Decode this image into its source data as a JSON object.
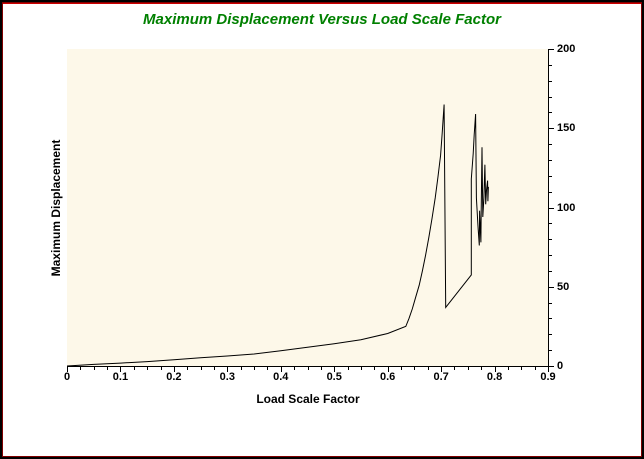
{
  "window": {
    "background": "#ffffff",
    "border_outer": "#000000",
    "border_inner": "#800000",
    "border_inner_top": "#cc0000"
  },
  "chart_data": {
    "type": "line",
    "title": "Maximum Displacement Versus Load Scale Factor",
    "xlabel": "Load Scale Factor",
    "ylabel": "Maximum Displacement",
    "xlim": [
      0,
      0.9
    ],
    "ylim": [
      0,
      200
    ],
    "x_ticks": [
      "0",
      "0.1",
      "0.2",
      "0.3",
      "0.4",
      "0.5",
      "0.6",
      "0.7",
      "0.8",
      "0.9"
    ],
    "y_ticks": [
      "0",
      "50",
      "100",
      "150",
      "200"
    ],
    "x_major_step": 0.1,
    "x_minor_step": 0.025,
    "y_major_step": 50,
    "y_minor_step": 10,
    "y_axis_position": "right",
    "grid": false,
    "legend": "none",
    "colors": {
      "title": "#008000",
      "plot_background": "#fdf8e9",
      "line": "#000000",
      "axis": "#000000",
      "labels": "#000000"
    },
    "series": [
      {
        "name": "max-displacement-curve",
        "points": [
          [
            0.0,
            0
          ],
          [
            0.05,
            1
          ],
          [
            0.1,
            1.8
          ],
          [
            0.15,
            2.8
          ],
          [
            0.2,
            4.0
          ],
          [
            0.25,
            5.2
          ],
          [
            0.3,
            6.3
          ],
          [
            0.35,
            7.6
          ],
          [
            0.4,
            9.6
          ],
          [
            0.45,
            11.8
          ],
          [
            0.5,
            14.0
          ],
          [
            0.55,
            16.6
          ],
          [
            0.6,
            20.5
          ],
          [
            0.634,
            25
          ],
          [
            0.64,
            30
          ],
          [
            0.646,
            36
          ],
          [
            0.652,
            43
          ],
          [
            0.659,
            51
          ],
          [
            0.665,
            60
          ],
          [
            0.671,
            70
          ],
          [
            0.677,
            81
          ],
          [
            0.683,
            93
          ],
          [
            0.689,
            106
          ],
          [
            0.694,
            119
          ],
          [
            0.699,
            133
          ],
          [
            0.702,
            147
          ],
          [
            0.7055,
            165
          ],
          [
            0.7085,
            37
          ],
          [
            0.7565,
            57.5
          ],
          [
            0.7565,
            118
          ],
          [
            0.76,
            134
          ],
          [
            0.762,
            146
          ],
          [
            0.7645,
            159
          ],
          [
            0.766,
            106
          ],
          [
            0.769,
            88
          ],
          [
            0.7715,
            76
          ],
          [
            0.772,
            98
          ],
          [
            0.7745,
            78
          ],
          [
            0.775,
            98
          ],
          [
            0.7765,
            138
          ],
          [
            0.778,
            94
          ],
          [
            0.78,
            106
          ],
          [
            0.782,
            127
          ],
          [
            0.7835,
            102
          ],
          [
            0.785,
            111
          ],
          [
            0.787,
            117
          ],
          [
            0.7875,
            104
          ],
          [
            0.7885,
            113
          ]
        ]
      }
    ]
  }
}
